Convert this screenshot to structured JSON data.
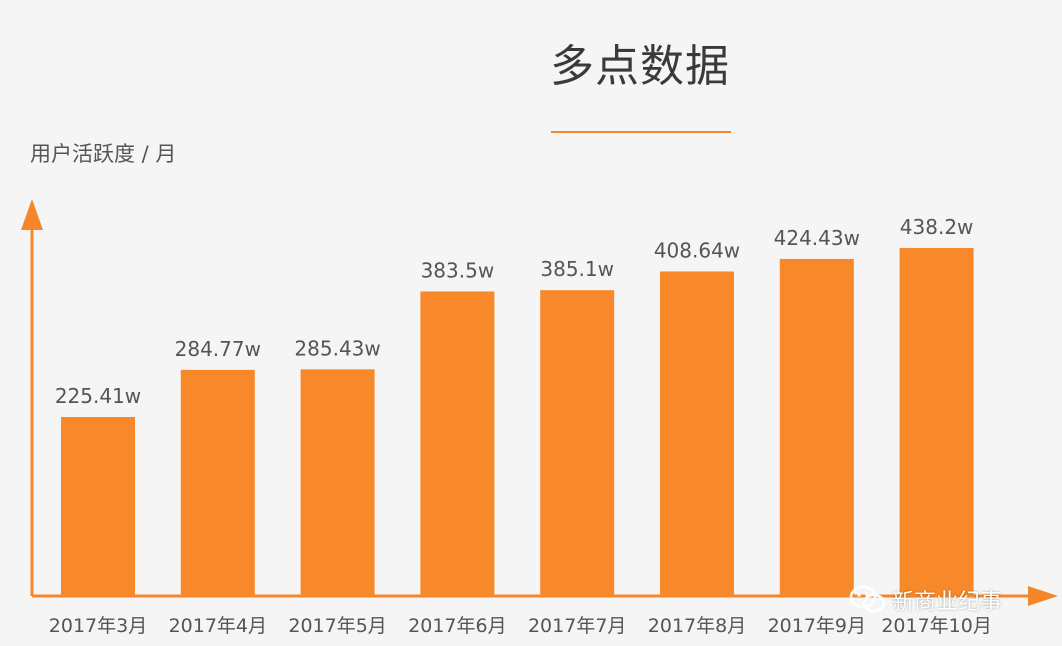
{
  "colors": {
    "bar": "#f7892a",
    "axis": "#f5862b",
    "text": "#555555",
    "title": "#3a3a3a"
  },
  "header": {
    "title": "多点数据"
  },
  "watermark": {
    "text": "新商业纪事",
    "icon": "wechat-icon"
  },
  "chart_data": {
    "type": "bar",
    "ylabel": "用户活跃度 / 月",
    "xlabel": "",
    "categories": [
      "2017年3月",
      "2017年4月",
      "2017年5月",
      "2017年6月",
      "2017年7月",
      "2017年8月",
      "2017年9月",
      "2017年10月"
    ],
    "values": [
      225.41,
      284.77,
      285.43,
      383.5,
      385.1,
      408.64,
      424.43,
      438.2
    ],
    "data_labels": [
      "225.41w",
      "284.77w",
      "285.43w",
      "383.5w",
      "385.1w",
      "408.64w",
      "424.43w",
      "438.2w"
    ],
    "grid": false
  }
}
